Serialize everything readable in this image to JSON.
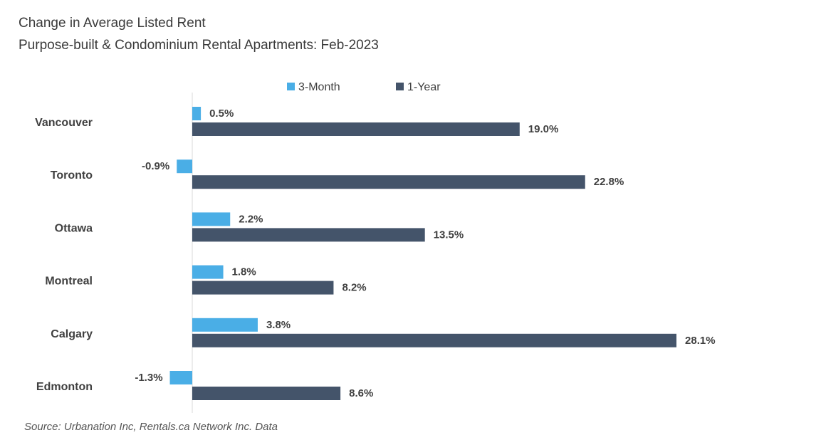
{
  "title": "Change in Average Listed Rent",
  "subtitle": "Purpose-built & Condominium Rental Apartments: Feb-2023",
  "source": "Source: Urbanation Inc, Rentals.ca Network Inc. Data",
  "colors": {
    "three_month": "#4aaee6",
    "one_year": "#44546a",
    "axis": "#d9d9d9"
  },
  "chart_data": {
    "type": "bar",
    "orientation": "horizontal",
    "categories": [
      "Vancouver",
      "Toronto",
      "Ottawa",
      "Montreal",
      "Calgary",
      "Edmonton"
    ],
    "series": [
      {
        "name": "3-Month",
        "values": [
          0.5,
          -0.9,
          2.2,
          1.8,
          3.8,
          -1.3
        ],
        "labels": [
          "0.5%",
          "-0.9%",
          "2.2%",
          "1.8%",
          "3.8%",
          "-1.3%"
        ]
      },
      {
        "name": "1-Year",
        "values": [
          19.0,
          22.8,
          13.5,
          8.2,
          28.1,
          8.6
        ],
        "labels": [
          "19.0%",
          "22.8%",
          "13.5%",
          "8.2%",
          "28.1%",
          "8.6%"
        ]
      }
    ],
    "legend": "top",
    "grid": false
  }
}
